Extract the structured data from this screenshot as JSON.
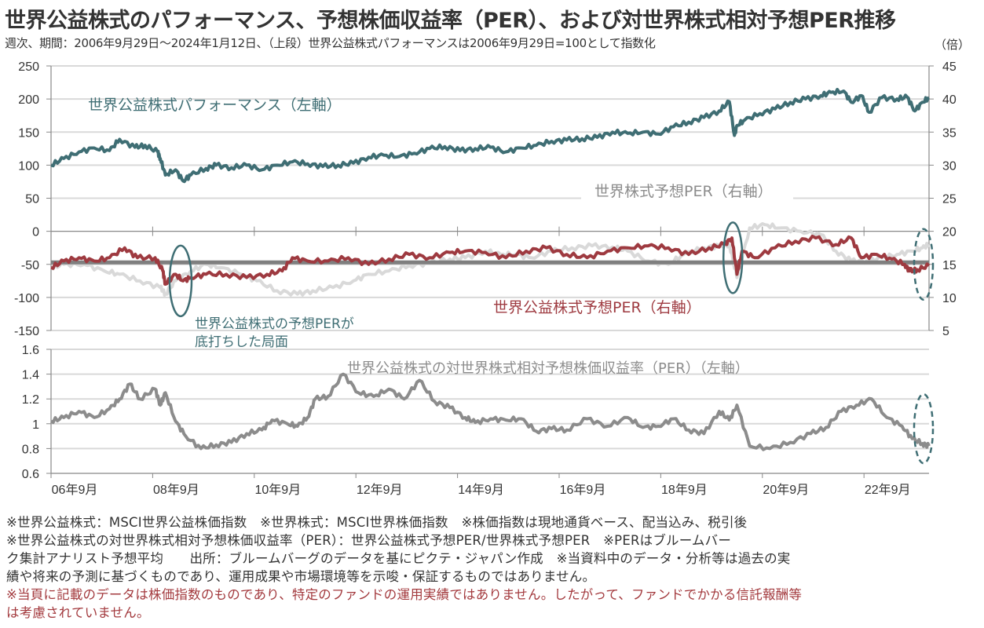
{
  "title": "世界公益株式のパフォーマンス、予想株価収益率（PER）、および対世界株式相対予想PER推移",
  "subtitle": "週次、期間：2006年9月29日～2024年1月12日、（上段）世界公益株式パフォーマンスは2006年9月29日=100として指数化",
  "right_axis_unit": "（倍）",
  "colors": {
    "performance": "#3f6e74",
    "utility_per": "#9e3a40",
    "world_per": "#d9d9d9",
    "relative_per": "#8c8c8c",
    "reference_line": "#7f7f7f",
    "ellipse": "#3f6e74",
    "grid": "#d9d9d9",
    "note_red": "#a33a3e"
  },
  "chart_data": [
    {
      "type": "line",
      "panel": "upper",
      "title": "",
      "left_axis": {
        "ylim": [
          -150,
          250
        ],
        "ticks": [
          "250",
          "200",
          "150",
          "100",
          "50",
          "0",
          "-50",
          "-100",
          "-150"
        ]
      },
      "right_axis": {
        "ylim": [
          5,
          45
        ],
        "ticks": [
          "45",
          "40",
          "35",
          "30",
          "25",
          "20",
          "15",
          "10",
          "5"
        ],
        "unit": "（倍）"
      },
      "x_range": [
        "2006-09",
        "2024-01"
      ],
      "series": [
        {
          "name": "世界公益株式パフォーマンス（左軸）",
          "axis": "left",
          "x": [
            2006.75,
            2007.0,
            2007.3,
            2007.6,
            2007.9,
            2008.1,
            2008.4,
            2008.6,
            2008.85,
            2008.9,
            2009.0,
            2009.2,
            2009.35,
            2009.5,
            2009.8,
            2010.0,
            2010.3,
            2010.6,
            2010.9,
            2011.2,
            2011.5,
            2011.8,
            2012.1,
            2012.4,
            2012.7,
            2013.0,
            2013.3,
            2013.6,
            2013.9,
            2014.2,
            2014.5,
            2014.8,
            2015.1,
            2015.4,
            2015.7,
            2016.0,
            2016.3,
            2016.6,
            2016.9,
            2017.2,
            2017.5,
            2017.8,
            2018.1,
            2018.4,
            2018.7,
            2019.0,
            2019.3,
            2019.6,
            2019.9,
            2020.1,
            2020.2,
            2020.25,
            2020.4,
            2020.7,
            2021.0,
            2021.3,
            2021.6,
            2021.9,
            2022.1,
            2022.35,
            2022.5,
            2022.7,
            2022.85,
            2023.1,
            2023.4,
            2023.6,
            2023.75,
            2023.9,
            2024.03
          ],
          "values": [
            100,
            110,
            120,
            126,
            122,
            139,
            127,
            130,
            120,
            110,
            85,
            93,
            76,
            85,
            95,
            100,
            96,
            100,
            93,
            100,
            105,
            102,
            98,
            100,
            103,
            112,
            115,
            113,
            118,
            125,
            128,
            122,
            125,
            127,
            120,
            126,
            130,
            136,
            138,
            140,
            142,
            150,
            148,
            150,
            147,
            158,
            165,
            172,
            182,
            196,
            145,
            160,
            168,
            178,
            185,
            195,
            200,
            205,
            210,
            212,
            195,
            205,
            180,
            202,
            200,
            203,
            182,
            195,
            202
          ]
        },
        {
          "name": "世界株式予想PER（右軸）",
          "axis": "right",
          "x": [
            2006.75,
            2007.0,
            2007.4,
            2007.8,
            2008.1,
            2008.5,
            2008.9,
            2009.0,
            2009.2,
            2009.5,
            2009.8,
            2010.1,
            2010.5,
            2010.8,
            2011.2,
            2011.6,
            2011.9,
            2012.3,
            2012.7,
            2013.0,
            2013.4,
            2013.8,
            2014.2,
            2014.6,
            2014.9,
            2015.3,
            2015.6,
            2015.9,
            2016.2,
            2016.6,
            2017.0,
            2017.4,
            2017.8,
            2018.1,
            2018.5,
            2018.9,
            2019.2,
            2019.6,
            2019.9,
            2020.1,
            2020.25,
            2020.5,
            2020.8,
            2021.1,
            2021.5,
            2021.9,
            2022.2,
            2022.5,
            2022.8,
            2023.1,
            2023.4,
            2023.7,
            2023.9,
            2024.03
          ],
          "values": [
            14.5,
            15.0,
            15.0,
            14.0,
            13.5,
            12.5,
            11.5,
            10.5,
            12.5,
            14.0,
            15.0,
            14.5,
            13.5,
            12.5,
            11.0,
            10.5,
            11.0,
            11.5,
            12.5,
            13.5,
            14.0,
            14.8,
            15.2,
            15.8,
            16.0,
            17.0,
            16.5,
            16.5,
            16.0,
            17.0,
            17.5,
            17.8,
            17.6,
            17.0,
            15.5,
            15.0,
            16.5,
            17.5,
            17.8,
            18.0,
            13.0,
            20.5,
            21.0,
            20.5,
            20.0,
            19.5,
            17.0,
            15.5,
            15.5,
            16.0,
            16.5,
            17.0,
            17.5,
            18.0
          ]
        },
        {
          "name": "世界公益株式予想PER（右軸）",
          "axis": "right",
          "x": [
            2006.75,
            2007.0,
            2007.3,
            2007.6,
            2007.9,
            2008.2,
            2008.45,
            2008.8,
            2008.95,
            2009.0,
            2009.2,
            2009.35,
            2009.5,
            2009.8,
            2010.2,
            2010.6,
            2011.0,
            2011.3,
            2011.5,
            2011.8,
            2012.2,
            2012.6,
            2013.0,
            2013.4,
            2013.8,
            2014.2,
            2014.6,
            2014.9,
            2015.3,
            2015.7,
            2016.1,
            2016.5,
            2016.9,
            2017.3,
            2017.7,
            2018.1,
            2018.5,
            2018.9,
            2019.3,
            2019.7,
            2020.0,
            2020.15,
            2020.25,
            2020.35,
            2020.6,
            2021.0,
            2021.4,
            2021.8,
            2022.2,
            2022.5,
            2022.7,
            2023.0,
            2023.3,
            2023.55,
            2023.65,
            2023.8,
            2024.03
          ],
          "values": [
            14.5,
            15.5,
            16.0,
            15.5,
            16.0,
            17.5,
            16.0,
            16.0,
            14.0,
            12.0,
            13.5,
            12.5,
            13.0,
            13.5,
            13.5,
            13.0,
            13.5,
            14.0,
            16.0,
            15.5,
            15.5,
            16.0,
            15.0,
            15.8,
            16.5,
            16.0,
            16.8,
            17.0,
            16.8,
            16.0,
            17.0,
            17.5,
            16.5,
            16.0,
            17.0,
            17.5,
            17.8,
            17.5,
            16.5,
            17.5,
            18.0,
            19.0,
            13.5,
            17.0,
            16.0,
            17.5,
            18.5,
            19.0,
            18.0,
            19.0,
            16.0,
            16.5,
            15.8,
            15.0,
            14.0,
            14.2,
            14.8
          ]
        },
        {
          "name": "reference-line",
          "axis": "right",
          "x": [
            2006.75,
            2024.03
          ],
          "values": [
            15.3,
            15.3
          ]
        }
      ],
      "annotations": [
        {
          "text": "世界公益株式パフォーマンス（左軸）",
          "color": "#3f6e74"
        },
        {
          "text": "世界株式予想PER（右軸）",
          "color": "#8c8c8c"
        },
        {
          "text": "世界公益株式予想PER（右軸）",
          "color": "#9e3a40"
        },
        {
          "text": "世界公益株式の予想PERが",
          "color": "#3f6e74"
        },
        {
          "text": "底打ちした局面",
          "color": "#3f6e74"
        }
      ],
      "highlights": [
        {
          "shape": "ellipse",
          "style": "solid",
          "x_center": 2009.3,
          "y_center_right_axis": 12.5
        },
        {
          "shape": "ellipse",
          "style": "solid",
          "x_center": 2020.2,
          "y_center_right_axis": 16.0
        },
        {
          "shape": "ellipse",
          "style": "dashed",
          "x_center": 2023.95,
          "y_center_right_axis": 15.0
        }
      ],
      "grid": true
    },
    {
      "type": "line",
      "panel": "lower",
      "left_axis": {
        "ylim": [
          0.6,
          1.6
        ],
        "ticks": [
          "1.6",
          "1.4",
          "1.2",
          "1",
          "0.8",
          "0.6"
        ]
      },
      "x_tick_labels": [
        "06年9月",
        "08年9月",
        "10年9月",
        "12年9月",
        "14年9月",
        "16年9月",
        "18年9月",
        "20年9月",
        "22年9月"
      ],
      "series": [
        {
          "name": "世界公益株式の対世界株式相対予想株価収益率（PER）（左軸）",
          "axis": "left",
          "x": [
            2006.75,
            2007.0,
            2007.3,
            2007.6,
            2007.9,
            2008.1,
            2008.3,
            2008.5,
            2008.8,
            2008.9,
            2009.0,
            2009.2,
            2009.4,
            2009.7,
            2010.0,
            2010.3,
            2010.6,
            2010.9,
            2011.1,
            2011.4,
            2011.6,
            2011.8,
            2011.95,
            2012.2,
            2012.5,
            2012.8,
            2013.1,
            2013.4,
            2013.7,
            2014.0,
            2014.3,
            2014.6,
            2014.9,
            2015.1,
            2015.4,
            2015.7,
            2016.0,
            2016.3,
            2016.6,
            2016.9,
            2017.3,
            2017.7,
            2018.1,
            2018.4,
            2018.7,
            2019.0,
            2019.3,
            2019.6,
            2019.9,
            2020.1,
            2020.25,
            2020.5,
            2020.9,
            2021.3,
            2021.7,
            2022.0,
            2022.3,
            2022.6,
            2022.9,
            2023.2,
            2023.5,
            2023.7,
            2023.9,
            2024.03
          ],
          "values": [
            1.02,
            1.05,
            1.1,
            1.05,
            1.12,
            1.2,
            1.32,
            1.2,
            1.28,
            1.15,
            1.25,
            1.02,
            0.9,
            0.8,
            0.83,
            0.85,
            0.92,
            0.95,
            1.03,
            1.0,
            0.98,
            1.05,
            1.2,
            1.22,
            1.4,
            1.25,
            1.22,
            1.28,
            1.2,
            1.35,
            1.18,
            1.13,
            1.05,
            1.01,
            1.04,
            1.03,
            1.04,
            0.94,
            0.96,
            0.95,
            1.04,
            0.98,
            1.05,
            0.97,
            0.98,
            1.04,
            0.95,
            0.92,
            1.1,
            1.03,
            1.15,
            0.82,
            0.8,
            0.85,
            0.92,
            0.97,
            1.1,
            1.15,
            1.2,
            1.05,
            0.98,
            0.88,
            0.84,
            0.82
          ]
        }
      ],
      "annotations": [
        {
          "text": "世界公益株式の対世界株式相対予想株価収益率（PER）（左軸）",
          "color": "#8c8c8c"
        }
      ],
      "highlights": [
        {
          "shape": "ellipse",
          "style": "dashed",
          "x_center": 2023.95,
          "y_center": 0.96
        }
      ],
      "grid": true
    }
  ],
  "notes": [
    {
      "text": "※世界公益株式：MSCI世界公益株価指数　※世界株式：MSCI世界株価指数　※株価指数は現地通貨ベース、配当込み、税引後",
      "color": "default"
    },
    {
      "text": "※世界公益株式の対世界株式相対予想株価収益率（PER）：世界公益株式予想PER/世界株式予想PER　※PERはブルームバー",
      "color": "default"
    },
    {
      "text": "ク集計アナリスト予想平均　　出所：ブルームバーグのデータを基にピクテ・ジャパン作成　※当資料中のデータ・分析等は過去の実",
      "color": "default"
    },
    {
      "text": "績や将来の予測に基づくものであり、運用成果や市場環境等を示唆・保証するものではありません。",
      "color": "default"
    },
    {
      "text": "※当頁に記載のデータは株価指数のものであり、特定のファンドの運用実績ではありません。したがって、ファンドでかかる信託報酬等",
      "color": "red"
    },
    {
      "text": "は考慮されていません。",
      "color": "red"
    }
  ]
}
